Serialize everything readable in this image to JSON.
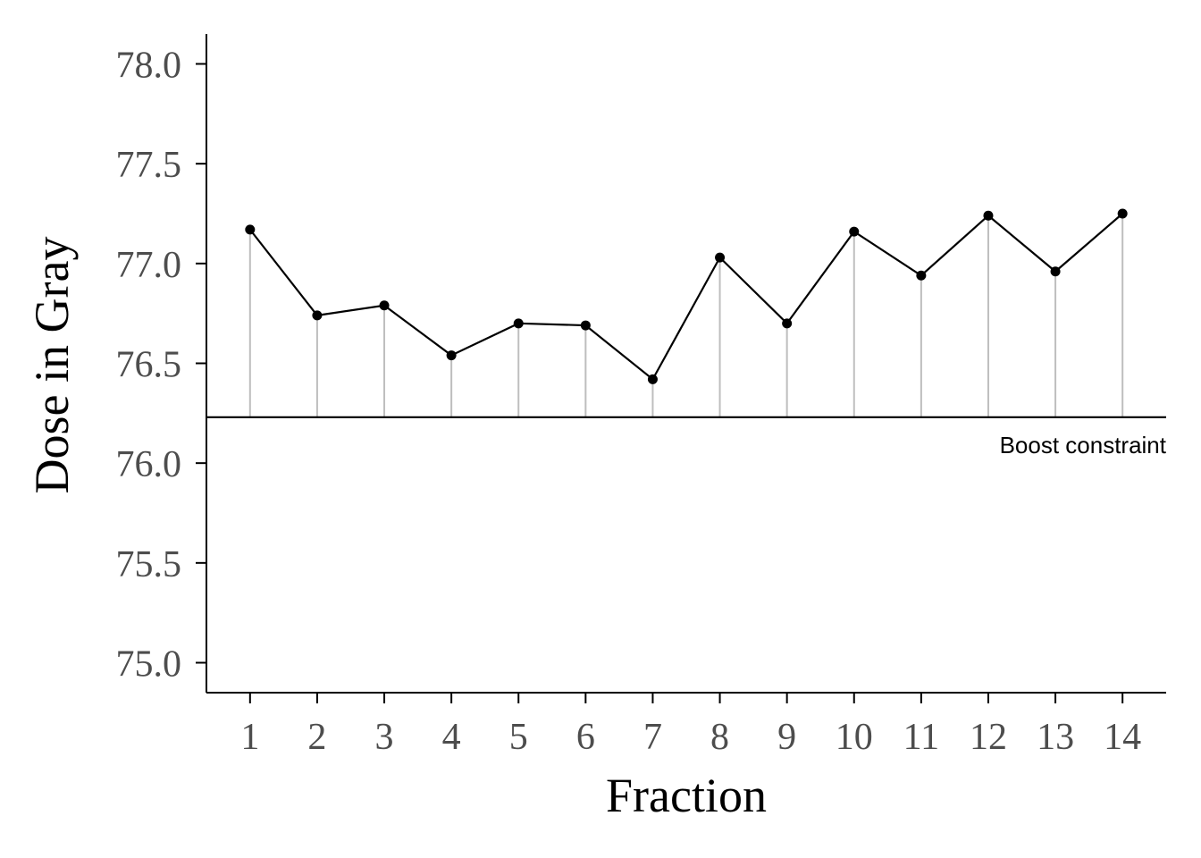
{
  "chart_data": {
    "type": "line",
    "title": "",
    "xlabel": "Fraction",
    "ylabel": "Dose in Gray",
    "x": [
      1,
      2,
      3,
      4,
      5,
      6,
      7,
      8,
      9,
      10,
      11,
      12,
      13,
      14
    ],
    "x_tick_labels": [
      "1",
      "2",
      "3",
      "4",
      "5",
      "6",
      "7",
      "8",
      "9",
      "10",
      "11",
      "12",
      "13",
      "14"
    ],
    "series": [
      {
        "values": [
          77.17,
          76.74,
          76.79,
          76.54,
          76.7,
          76.69,
          76.42,
          77.03,
          76.7,
          77.16,
          76.94,
          77.24,
          76.96,
          77.25
        ]
      }
    ],
    "y_ticks": [
      75.0,
      75.5,
      76.0,
      76.5,
      77.0,
      77.5,
      78.0
    ],
    "y_tick_labels": [
      "75.0",
      "75.5",
      "76.0",
      "76.5",
      "77.0",
      "77.5",
      "78.0"
    ],
    "ylim": [
      74.85,
      78.15
    ],
    "xlim": [
      0.35,
      14.65
    ],
    "reference_line": {
      "value": 76.23,
      "label": "Boost constraint"
    },
    "grid": false,
    "colors": {
      "line": "#000000",
      "stem": "#bebebe",
      "tick_text": "#4d4d4d"
    }
  }
}
